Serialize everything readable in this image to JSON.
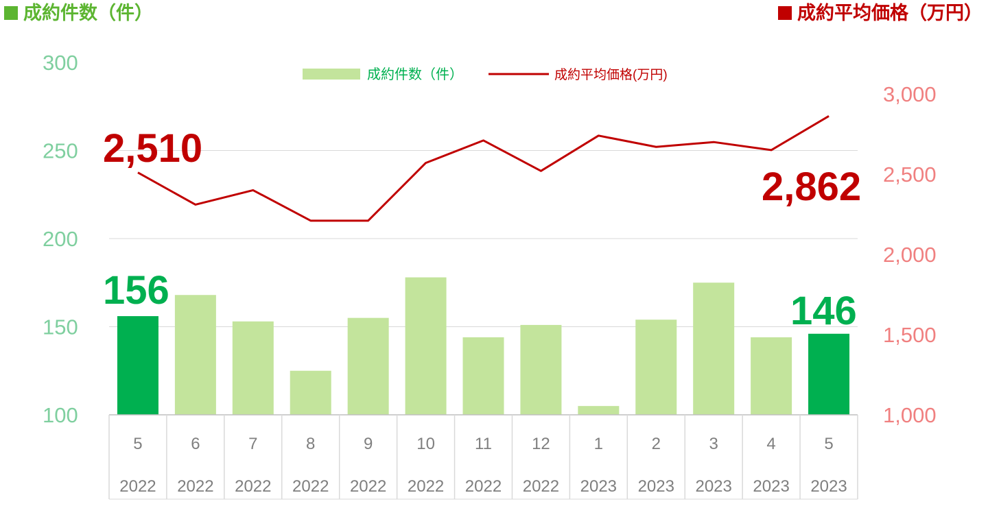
{
  "header": {
    "left_title": "成約件数（件）",
    "right_title": "成約平均価格（万円）"
  },
  "colors": {
    "bar": "#c3e49c",
    "bar_highlight": "#00b050",
    "line": "#c00000",
    "left_axis": "#7fcf9f",
    "right_axis": "#f08080",
    "grid": "#d9d9d9",
    "category_text": "#7f7f7f"
  },
  "chart_data": {
    "type": "bar+line",
    "categories": [
      {
        "month": "5",
        "year": "2022"
      },
      {
        "month": "6",
        "year": "2022"
      },
      {
        "month": "7",
        "year": "2022"
      },
      {
        "month": "8",
        "year": "2022"
      },
      {
        "month": "9",
        "year": "2022"
      },
      {
        "month": "10",
        "year": "2022"
      },
      {
        "month": "11",
        "year": "2022"
      },
      {
        "month": "12",
        "year": "2022"
      },
      {
        "month": "1",
        "year": "2023"
      },
      {
        "month": "2",
        "year": "2023"
      },
      {
        "month": "3",
        "year": "2023"
      },
      {
        "month": "4",
        "year": "2023"
      },
      {
        "month": "5",
        "year": "2023"
      }
    ],
    "series": [
      {
        "name": "成約件数（件）",
        "type": "bar",
        "axis": "left",
        "values": [
          156,
          168,
          153,
          125,
          155,
          178,
          144,
          151,
          105,
          154,
          175,
          144,
          146
        ],
        "highlighted": [
          0,
          12
        ]
      },
      {
        "name": "成約平均価格(万円)",
        "type": "line",
        "axis": "right",
        "values": [
          2510,
          2310,
          2400,
          2210,
          2210,
          2570,
          2710,
          2520,
          2740,
          2670,
          2700,
          2650,
          2862
        ]
      }
    ],
    "left_axis": {
      "ylim": [
        100,
        300
      ],
      "ticks": [
        "100",
        "150",
        "200",
        "250",
        "300"
      ]
    },
    "right_axis": {
      "ylim": [
        1000,
        3000
      ],
      "ticks": [
        "1,000",
        "1,500",
        "2,000",
        "2,500",
        "3,000"
      ]
    },
    "data_labels": {
      "line_first": "2,510",
      "line_last": "2,862",
      "bar_first": "156",
      "bar_last": "146"
    },
    "legend": {
      "position": "top-center"
    },
    "grid": true
  }
}
